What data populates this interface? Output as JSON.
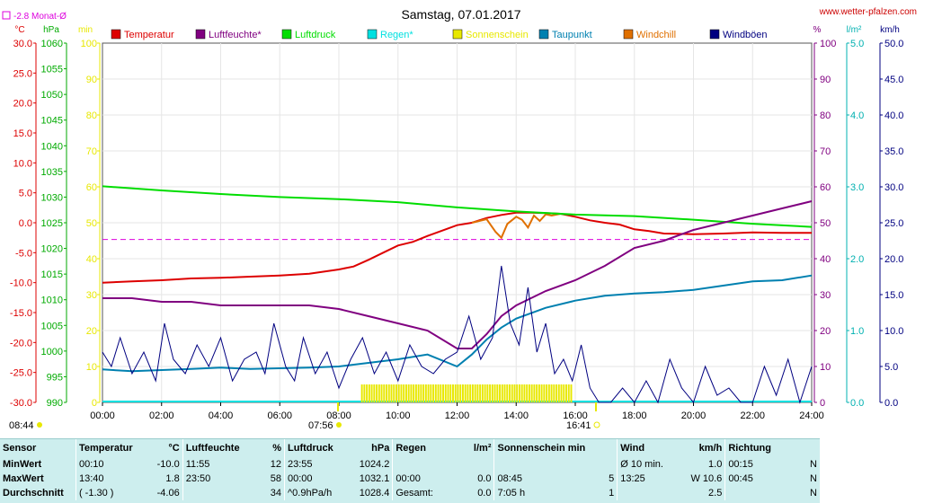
{
  "header": {
    "title": "Samstag, 07.01.2017",
    "website": "www.wetter-pfalzen.com",
    "month_avg_label": "-2.8 Monat-Ø",
    "month_avg_value": -2.8,
    "unit_temp": "°C",
    "unit_pressure": "hPa",
    "unit_min": "min",
    "unit_percent": "%",
    "unit_rain": "l/m²",
    "unit_wind": "km/h"
  },
  "legend": [
    {
      "label": "Temperatur",
      "color": "#dd0000"
    },
    {
      "label": "Luftfeuchte*",
      "color": "#800080"
    },
    {
      "label": "Luftdruck",
      "color": "#00dd00"
    },
    {
      "label": "Regen*",
      "color": "#00e0e0"
    },
    {
      "label": "Sonnenschein",
      "color": "#e8e800"
    },
    {
      "label": "Taupunkt",
      "color": "#0080b0"
    },
    {
      "label": "Windchill",
      "color": "#e07000"
    },
    {
      "label": "Windböen",
      "color": "#000080"
    }
  ],
  "sun_marks": {
    "sunrise": "08:44",
    "sunrise_x": "07:56",
    "sunset": "16:41"
  },
  "chart_data": {
    "type": "line",
    "xlabel": "",
    "x_ticks": [
      "00:00",
      "02:00",
      "04:00",
      "06:00",
      "08:00",
      "10:00",
      "12:00",
      "14:00",
      "16:00",
      "18:00",
      "20:00",
      "22:00",
      "24:00"
    ],
    "x_range_hours": [
      0,
      24
    ],
    "axes": {
      "temperature": {
        "unit": "°C",
        "range": [
          -30,
          30
        ],
        "ticks": [
          "30.0",
          "25.0",
          "20.0",
          "15.0",
          "10.0",
          "5.0",
          "0.0",
          "-5.0",
          "-10.0",
          "-15.0",
          "-20.0",
          "-25.0",
          "-30.0"
        ],
        "color": "#dd0000"
      },
      "pressure": {
        "unit": "hPa",
        "range": [
          990,
          1060
        ],
        "ticks": [
          "1060",
          "1055",
          "1050",
          "1045",
          "1040",
          "1035",
          "1030",
          "1025",
          "1020",
          "1015",
          "1010",
          "1005",
          "1000",
          "995",
          "990"
        ],
        "color": "#00aa00"
      },
      "sunshine_min": {
        "unit": "min",
        "range": [
          0,
          100
        ],
        "ticks": [
          "100",
          "90",
          "80",
          "70",
          "60",
          "50",
          "40",
          "30",
          "20",
          "10",
          "0"
        ],
        "color": "#e8e800"
      },
      "humidity": {
        "unit": "%",
        "range": [
          0,
          100
        ],
        "ticks": [
          "100",
          "90",
          "80",
          "70",
          "60",
          "50",
          "40",
          "30",
          "20",
          "10",
          "0"
        ],
        "color": "#800080"
      },
      "rain": {
        "unit": "l/m²",
        "range": [
          0,
          5
        ],
        "ticks": [
          "5.0",
          "4.0",
          "3.0",
          "2.0",
          "1.0",
          "0.0"
        ],
        "color": "#00b0b0"
      },
      "wind": {
        "unit": "km/h",
        "range": [
          0,
          50
        ],
        "ticks": [
          "50.0",
          "45.0",
          "40.0",
          "35.0",
          "30.0",
          "25.0",
          "20.0",
          "15.0",
          "10.0",
          "5.0",
          "0.0"
        ],
        "color": "#000080"
      }
    },
    "series": [
      {
        "name": "Temperatur",
        "axis": "temperature",
        "color": "#dd0000",
        "x": [
          0,
          1,
          2,
          3,
          4,
          5,
          6,
          7,
          8,
          8.5,
          9,
          9.5,
          10,
          10.5,
          11,
          11.5,
          12,
          12.5,
          13,
          13.5,
          14,
          14.5,
          15,
          15.5,
          16,
          16.5,
          17,
          17.5,
          18,
          18.5,
          19,
          20,
          21,
          22,
          23,
          24
        ],
        "y": [
          -10,
          -9.8,
          -9.6,
          -9.3,
          -9.2,
          -9.0,
          -8.8,
          -8.5,
          -7.8,
          -7.3,
          -6.2,
          -5.0,
          -3.8,
          -3.2,
          -2.2,
          -1.3,
          -0.4,
          0.0,
          0.8,
          1.3,
          1.7,
          1.7,
          1.6,
          1.5,
          1.0,
          0.4,
          0.0,
          -0.3,
          -1.1,
          -1.4,
          -1.8,
          -1.9,
          -1.8,
          -1.6,
          -1.7,
          -1.7
        ]
      },
      {
        "name": "Windchill",
        "axis": "temperature",
        "color": "#e07000",
        "x": [
          12.5,
          13,
          13.3,
          13.5,
          13.7,
          14,
          14.2,
          14.4,
          14.6,
          14.8,
          15,
          15.2,
          15.5
        ],
        "y": [
          0.0,
          0.6,
          -1.5,
          -2.5,
          -0.2,
          1.0,
          0.5,
          -0.8,
          1.2,
          0.3,
          1.4,
          1.2,
          1.5
        ]
      },
      {
        "name": "Luftdruck",
        "axis": "pressure",
        "color": "#00dd00",
        "x": [
          0,
          2,
          4,
          6,
          8,
          10,
          12,
          14,
          16,
          18,
          20,
          22,
          24
        ],
        "y": [
          1032.1,
          1031.3,
          1030.6,
          1030.0,
          1029.6,
          1029.0,
          1028.0,
          1027.2,
          1026.6,
          1026.3,
          1025.6,
          1024.8,
          1024.2
        ]
      },
      {
        "name": "Luftfeuchte*",
        "axis": "humidity",
        "color": "#800080",
        "x": [
          0,
          1,
          2,
          3,
          4,
          5,
          6,
          7,
          8,
          9,
          10,
          11,
          12,
          12.5,
          13,
          13.5,
          14,
          15,
          16,
          17,
          18,
          19,
          20,
          21,
          22,
          23,
          23.5,
          24
        ],
        "y": [
          29,
          29,
          28,
          28,
          27,
          27,
          27,
          27,
          26,
          24,
          22,
          20,
          15,
          15,
          19,
          24,
          27,
          31,
          34,
          38,
          43,
          45,
          48,
          50,
          52,
          54,
          55,
          56
        ]
      },
      {
        "name": "Taupunkt",
        "axis": "temperature",
        "color": "#0080b0",
        "x": [
          0,
          1,
          2,
          3,
          4,
          5,
          6,
          7,
          8,
          9,
          10,
          11,
          12,
          12.5,
          13,
          13.5,
          14,
          15,
          16,
          17,
          18,
          19,
          20,
          21,
          22,
          23,
          24
        ],
        "y": [
          -24.5,
          -24.8,
          -24.6,
          -24.4,
          -24.2,
          -24.4,
          -24.3,
          -24.2,
          -24.0,
          -23.4,
          -22.8,
          -22.0,
          -24.0,
          -22.0,
          -19.5,
          -17.5,
          -16.0,
          -14.2,
          -13.0,
          -12.2,
          -11.8,
          -11.6,
          -11.2,
          -10.5,
          -9.8,
          -9.6,
          -8.8
        ]
      },
      {
        "name": "Windböen",
        "axis": "wind",
        "color": "#000080",
        "x": [
          0,
          0.3,
          0.6,
          1,
          1.4,
          1.8,
          2.1,
          2.4,
          2.8,
          3.2,
          3.6,
          4,
          4.4,
          4.8,
          5.2,
          5.5,
          5.8,
          6.2,
          6.5,
          6.8,
          7.2,
          7.6,
          8,
          8.4,
          8.8,
          9.2,
          9.6,
          10,
          10.4,
          10.8,
          11.2,
          11.6,
          12,
          12.4,
          12.8,
          13.2,
          13.5,
          13.8,
          14.1,
          14.4,
          14.7,
          15,
          15.3,
          15.6,
          15.9,
          16.2,
          16.5,
          16.8,
          17.2,
          17.6,
          18,
          18.4,
          18.8,
          19.2,
          19.6,
          20,
          20.4,
          20.8,
          21.2,
          21.6,
          22,
          22.4,
          22.8,
          23.2,
          23.6,
          24
        ],
        "y": [
          7,
          5,
          9,
          4,
          7,
          3,
          11,
          6,
          4,
          8,
          5,
          9,
          3,
          6,
          7,
          4,
          11,
          5,
          3,
          9,
          4,
          7,
          2,
          6,
          9,
          4,
          7,
          3,
          8,
          5,
          4,
          6,
          7,
          12,
          6,
          9,
          19,
          11,
          8,
          16,
          7,
          11,
          4,
          6,
          3,
          8,
          2,
          0,
          0,
          2,
          0,
          3,
          0,
          6,
          2,
          0,
          5,
          1,
          2,
          0,
          0,
          5,
          1,
          6,
          0,
          5
        ]
      },
      {
        "name": "Sonnenschein",
        "axis": "sunshine_min",
        "color": "#e8e800",
        "kind": "bars",
        "x_start": 8.75,
        "x_end": 15.9,
        "y": 5
      }
    ],
    "month_avg_line": {
      "axis": "temperature",
      "value": -2.8,
      "color": "#dd00dd"
    },
    "grid": true
  },
  "stats": {
    "headers": [
      {
        "label": "Sensor",
        "unit": ""
      },
      {
        "label": "Temperatur",
        "unit": "°C"
      },
      {
        "label": "Luftfeuchte",
        "unit": "%"
      },
      {
        "label": "Luftdruck",
        "unit": "hPa"
      },
      {
        "label": "Regen",
        "unit": "l/m²"
      },
      {
        "label": "Sonnenschein min",
        "unit": ""
      },
      {
        "label": "Wind",
        "unit": "km/h"
      },
      {
        "label": "Richtung",
        "unit": ""
      }
    ],
    "rows": [
      {
        "label": "MinWert",
        "temp_time": "00:10",
        "temp_val": "-10.0",
        "hum_time": "11:55",
        "hum_val": "12",
        "press_time": "23:55",
        "press_val": "1024.2",
        "rain_time": "",
        "rain_val": "",
        "sun_time": "",
        "sun_val": "",
        "wind_time": "Ø 10 min.",
        "wind_val": "1.0",
        "dir_time": "00:15",
        "dir_val": "N"
      },
      {
        "label": "MaxWert",
        "temp_time": "13:40",
        "temp_val": "1.8",
        "hum_time": "23:50",
        "hum_val": "58",
        "press_time": "00:00",
        "press_val": "1032.1",
        "rain_time": "00:00",
        "rain_val": "0.0",
        "sun_time": "08:45",
        "sun_val": "5",
        "wind_time": "13:25",
        "wind_val": "W 10.6",
        "dir_time": "00:45",
        "dir_val": "N"
      },
      {
        "label": "Durchschnitt",
        "temp_time": "( -1.30 )",
        "temp_val": "-4.06",
        "hum_time": "",
        "hum_val": "34",
        "press_time": "^0.9hPa/h",
        "press_val": "1028.4",
        "rain_time": "Gesamt:",
        "rain_val": "0.0",
        "sun_time": "7:05 h",
        "sun_val": "1",
        "wind_time": "",
        "wind_val": "2.5",
        "dir_time": "",
        "dir_val": "N"
      }
    ]
  }
}
